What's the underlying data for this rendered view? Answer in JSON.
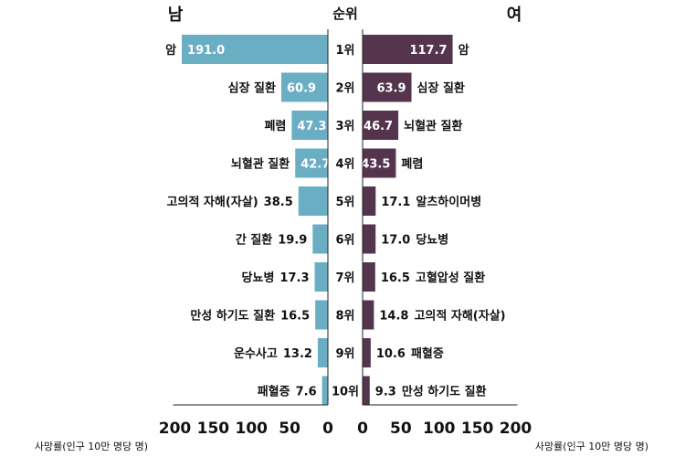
{
  "chart_data": {
    "type": "bar",
    "orientation": "horizontal-butterfly",
    "title_left": "남",
    "title_center": "순위",
    "title_right": "여",
    "xlabel_left": "사망률(인구 10만 명당 명)",
    "xlabel_right": "사망률(인구 10만 명당 명)",
    "xlim_left": [
      0,
      200
    ],
    "xlim_right": [
      0,
      200
    ],
    "ticks_left": [
      "200",
      "150",
      "100",
      "50",
      "0"
    ],
    "ticks_right": [
      "0",
      "50",
      "100",
      "150",
      "200"
    ],
    "ranks": [
      "1위",
      "2위",
      "3위",
      "4위",
      "5위",
      "6위",
      "7위",
      "8위",
      "9위",
      "10위"
    ],
    "series": [
      {
        "name": "남",
        "color": "#6aaec4",
        "categories": [
          "암",
          "심장 질환",
          "폐렴",
          "뇌혈관 질환",
          "고의적 자해(자살)",
          "간 질환",
          "당뇨병",
          "만성 하기도 질환",
          "운수사고",
          "패혈증"
        ],
        "values": [
          191.0,
          60.9,
          47.3,
          42.7,
          38.5,
          19.9,
          17.3,
          16.5,
          13.2,
          7.6
        ],
        "labels": [
          "191.0",
          "60.9",
          "47.3",
          "42.7",
          "38.5",
          "19.9",
          "17.3",
          "16.5",
          "13.2",
          "7.6"
        ]
      },
      {
        "name": "여",
        "color": "#54354d",
        "categories": [
          "암",
          "심장 질환",
          "뇌혈관 질환",
          "폐렴",
          "알츠하이머병",
          "당뇨병",
          "고혈압성 질환",
          "고의적 자해(자살)",
          "패혈증",
          "만성 하기도 질환"
        ],
        "values": [
          117.7,
          63.9,
          46.7,
          43.5,
          17.1,
          17.0,
          16.5,
          14.8,
          10.6,
          9.3
        ],
        "labels": [
          "117.7",
          "63.9",
          "46.7",
          "43.5",
          "17.1",
          "17.0",
          "16.5",
          "14.8",
          "10.6",
          "9.3"
        ]
      }
    ]
  }
}
